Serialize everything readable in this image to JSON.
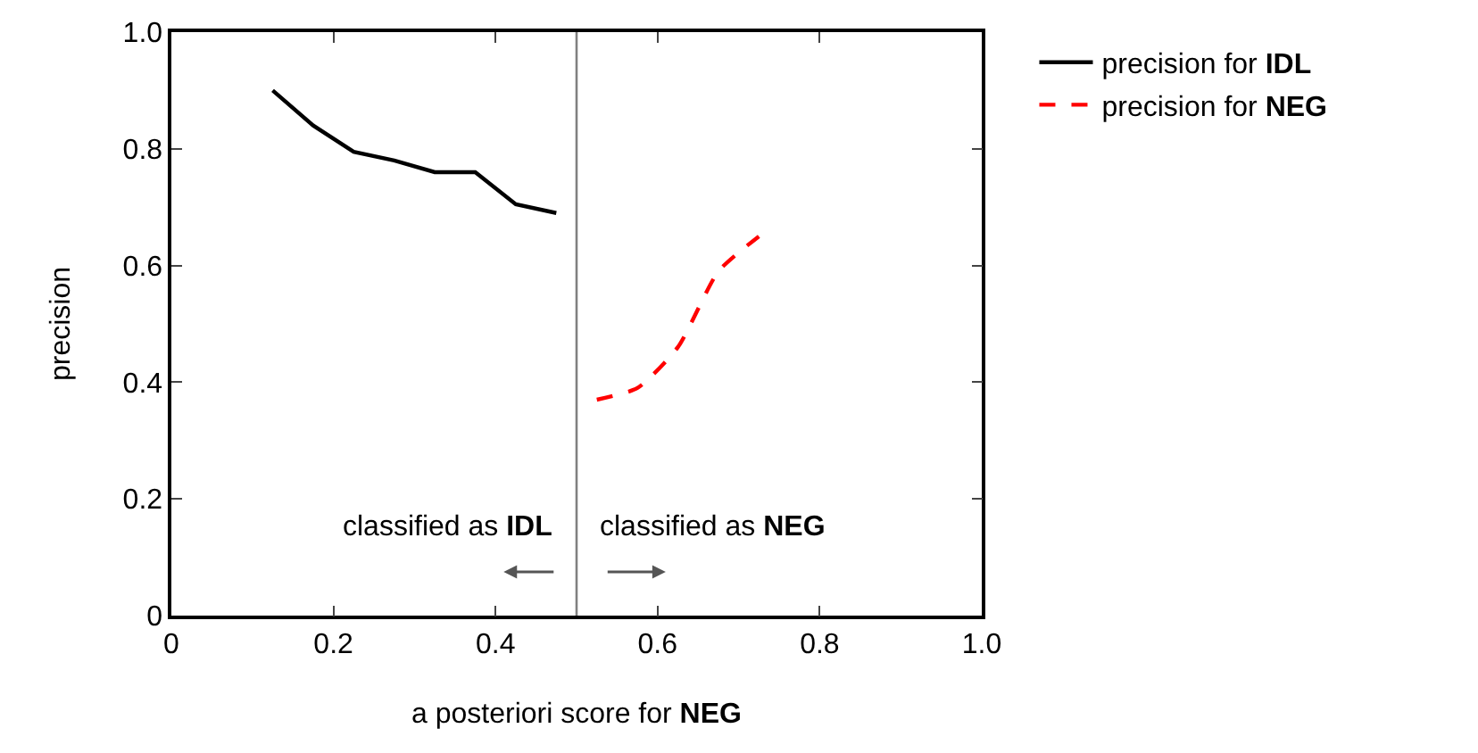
{
  "chart_data": {
    "type": "line",
    "xlabel": "a posteriori score for NEG",
    "ylabel": "precision",
    "xlim": [
      0,
      1
    ],
    "ylim": [
      0,
      1
    ],
    "xticks": [
      0,
      0.2,
      0.4,
      0.6,
      0.8,
      {
        "value": 1,
        "label": "1.0"
      }
    ],
    "yticks": [
      0,
      0.2,
      0.4,
      0.6,
      0.8,
      {
        "value": 1,
        "label": "1.0"
      }
    ],
    "series": [
      {
        "name": "precision for IDL",
        "color": "#000000",
        "line_style": "solid",
        "x": [
          0.125,
          0.175,
          0.225,
          0.275,
          0.325,
          0.375,
          0.425,
          0.475
        ],
        "values": [
          0.9,
          0.84,
          0.795,
          0.78,
          0.76,
          0.76,
          0.705,
          0.69
        ]
      },
      {
        "name": "precision for NEG",
        "color": "#ff0000",
        "line_style": "dashed",
        "x": [
          0.525,
          0.575,
          0.625,
          0.675,
          0.725
        ],
        "values": [
          0.37,
          0.39,
          0.46,
          0.59,
          0.65
        ]
      }
    ],
    "ref_lines": [
      {
        "axis": "x",
        "value": 0.5,
        "color": "#808080"
      }
    ],
    "annotations": [
      "classified as IDL",
      "classified as NEG"
    ],
    "grid": false,
    "legend": "right",
    "marker": "none"
  }
}
